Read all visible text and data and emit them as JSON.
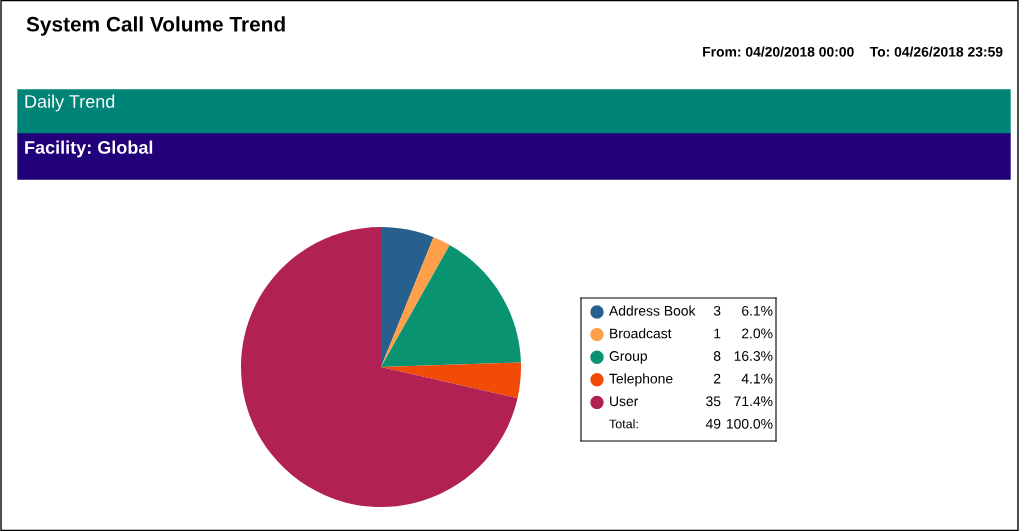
{
  "chart_data": {
    "type": "pie",
    "title": "System Call Volume Trend",
    "subtitle": "From: 04/20/2018 00:00    To: 04/26/2018 23:59",
    "annotations": [
      "Daily Trend",
      "Facility: Global",
      "Total:",
      "49",
      "100.0%"
    ],
    "categories": [
      "Address Book",
      "Broadcast",
      "Group",
      "Telephone",
      "User"
    ],
    "values": [
      3,
      1,
      8,
      2,
      35
    ],
    "value_labels": [
      "3 6.1%",
      "1 2.0%",
      "8 16.3%",
      "2 4.1%",
      "35 71.4%"
    ],
    "colors": [
      "#27608f",
      "#ff9f4a",
      "#0a9370",
      "#f24a07",
      "#b22153"
    ],
    "legend": "right"
  }
}
